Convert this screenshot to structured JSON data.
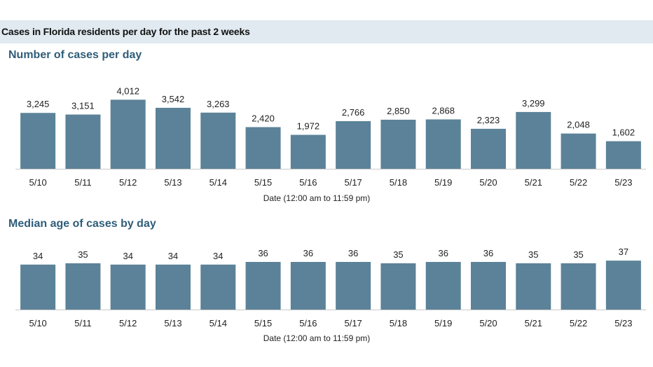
{
  "header": {
    "title": "Cases in Florida residents per day for the past 2 weeks"
  },
  "colors": {
    "bar": "#5b8298",
    "header_band": "#e0eaf0",
    "chart_title": "#2f5d7a"
  },
  "chart_data": [
    {
      "type": "bar",
      "title": "Number of cases per day",
      "xlabel": "Date (12:00 am to 11:59 pm)",
      "ylabel": "",
      "categories": [
        "5/10",
        "5/11",
        "5/12",
        "5/13",
        "5/14",
        "5/15",
        "5/16",
        "5/17",
        "5/18",
        "5/19",
        "5/20",
        "5/21",
        "5/22",
        "5/23"
      ],
      "values": [
        3245,
        3151,
        4012,
        3542,
        3263,
        2420,
        1972,
        2766,
        2850,
        2868,
        2323,
        3299,
        2048,
        1602
      ],
      "value_labels": [
        "3,245",
        "3,151",
        "4,012",
        "3,542",
        "3,263",
        "2,420",
        "1,972",
        "2,766",
        "2,850",
        "2,868",
        "2,323",
        "3,299",
        "2,048",
        "1,602"
      ],
      "ylim": [
        0,
        4800
      ],
      "grid": false,
      "legend": "none"
    },
    {
      "type": "bar",
      "title": "Median age of cases by day",
      "xlabel": "Date (12:00 am to 11:59 pm)",
      "ylabel": "",
      "categories": [
        "5/10",
        "5/11",
        "5/12",
        "5/13",
        "5/14",
        "5/15",
        "5/16",
        "5/17",
        "5/18",
        "5/19",
        "5/20",
        "5/21",
        "5/22",
        "5/23"
      ],
      "values": [
        34,
        35,
        34,
        34,
        34,
        36,
        36,
        36,
        35,
        36,
        36,
        35,
        35,
        37
      ],
      "value_labels": [
        "34",
        "35",
        "34",
        "34",
        "34",
        "36",
        "36",
        "36",
        "35",
        "36",
        "36",
        "35",
        "35",
        "37"
      ],
      "ylim": [
        0,
        45
      ],
      "grid": false,
      "legend": "none"
    }
  ]
}
